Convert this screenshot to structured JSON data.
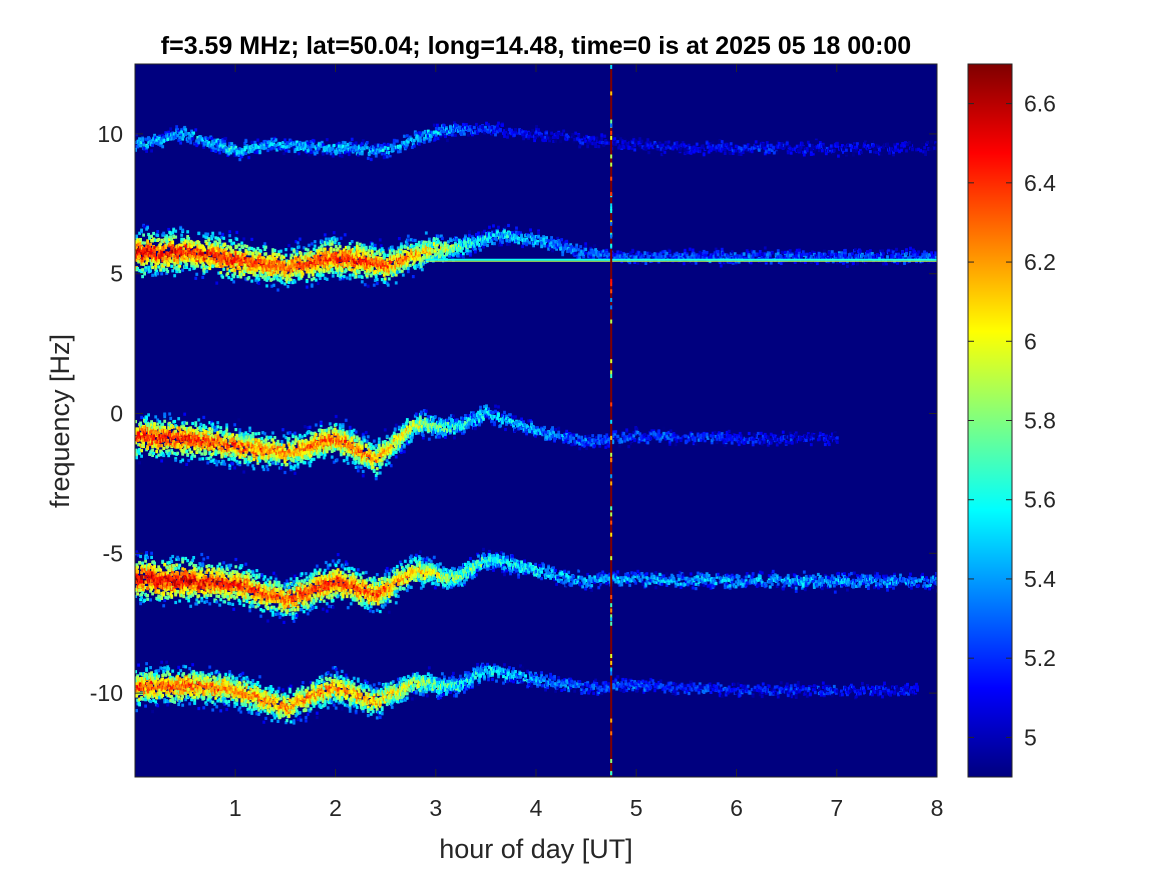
{
  "chart_data": {
    "type": "heatmap",
    "title": "f=3.59 MHz;  lat=50.04; long=14.48, time=0 is at 2025 05 18 00:00",
    "xlabel": "hour of day [UT]",
    "ylabel": "frequency [Hz]",
    "xlim": [
      0,
      8
    ],
    "ylim": [
      -13,
      12.5
    ],
    "x_ticks": [
      1,
      2,
      3,
      4,
      5,
      6,
      7,
      8
    ],
    "y_ticks": [
      -10,
      -5,
      0,
      5,
      10
    ],
    "colormap": "jet",
    "colorbar": {
      "range": [
        4.9,
        6.7
      ],
      "ticks": [
        5,
        5.2,
        5.4,
        5.6,
        5.8,
        6,
        6.2,
        6.4,
        6.6
      ]
    },
    "background_level": 4.9,
    "traces": [
      {
        "x": [
          0.0,
          0.5,
          1.0,
          1.5,
          2.0,
          2.5,
          3.0,
          3.5,
          4.0,
          4.5,
          5.0,
          5.5,
          6.0,
          7.0,
          8.0
        ],
        "y": [
          9.6,
          10.0,
          9.4,
          9.6,
          9.5,
          9.4,
          10.1,
          10.2,
          10.0,
          9.8,
          9.6,
          9.5,
          9.5,
          9.5,
          9.5
        ],
        "intensity": [
          5.5,
          5.5,
          5.6,
          5.5,
          5.5,
          5.5,
          5.5,
          5.2,
          5.1,
          5.1,
          5.1,
          5.1,
          5.2,
          5.1,
          5.0
        ]
      },
      {
        "x": [
          0.0,
          0.5,
          1.0,
          1.5,
          2.0,
          2.5,
          2.9,
          3.3,
          3.6,
          4.0,
          4.4,
          4.8,
          5.5,
          6.5,
          8.0
        ],
        "y": [
          5.7,
          5.8,
          5.5,
          5.2,
          5.6,
          5.3,
          5.8,
          6.0,
          6.4,
          6.2,
          5.8,
          5.6,
          5.6,
          5.6,
          5.6
        ],
        "intensity": [
          6.6,
          6.5,
          6.5,
          6.4,
          6.5,
          6.4,
          6.2,
          5.7,
          5.6,
          5.5,
          5.4,
          5.3,
          5.3,
          5.3,
          5.3
        ]
      },
      {
        "x": [
          0.0,
          0.5,
          1.0,
          1.5,
          2.0,
          2.4,
          2.8,
          3.2,
          3.5,
          4.0,
          4.5,
          5.0,
          6.0,
          7.0
        ],
        "y": [
          -0.8,
          -0.9,
          -1.2,
          -1.4,
          -0.9,
          -1.6,
          -0.4,
          -0.5,
          0.0,
          -0.6,
          -1.0,
          -0.8,
          -0.9,
          -0.9
        ],
        "intensity": [
          6.5,
          6.5,
          6.4,
          6.3,
          6.4,
          6.3,
          6.0,
          5.7,
          5.6,
          5.5,
          5.3,
          5.3,
          5.2,
          5.1
        ]
      },
      {
        "x": [
          0.0,
          0.5,
          1.0,
          1.5,
          2.0,
          2.4,
          2.8,
          3.2,
          3.5,
          4.0,
          4.5,
          5.0,
          6.0,
          7.0,
          8.0
        ],
        "y": [
          -5.9,
          -6.0,
          -6.1,
          -6.7,
          -6.0,
          -6.5,
          -5.6,
          -5.9,
          -5.2,
          -5.6,
          -6.0,
          -5.9,
          -6.0,
          -6.0,
          -6.0
        ],
        "intensity": [
          6.6,
          6.6,
          6.5,
          6.4,
          6.5,
          6.4,
          6.2,
          5.9,
          5.7,
          5.6,
          5.5,
          5.5,
          5.5,
          5.5,
          5.4
        ]
      },
      {
        "x": [
          0.0,
          0.5,
          1.0,
          1.5,
          2.0,
          2.4,
          2.8,
          3.2,
          3.5,
          4.0,
          4.5,
          5.0,
          6.0,
          7.0,
          7.8
        ],
        "y": [
          -9.8,
          -9.7,
          -9.9,
          -10.5,
          -9.8,
          -10.3,
          -9.6,
          -9.8,
          -9.2,
          -9.5,
          -9.8,
          -9.7,
          -9.9,
          -9.9,
          -9.9
        ],
        "intensity": [
          6.4,
          6.4,
          6.3,
          6.3,
          6.3,
          6.2,
          6.0,
          5.7,
          5.6,
          5.5,
          5.3,
          5.3,
          5.2,
          5.2,
          5.1
        ]
      }
    ],
    "horizontal_line": {
      "y": 5.5,
      "x_from": 2.9,
      "x_to": 8,
      "intensity": 5.6
    },
    "vertical_line": {
      "x": 4.75,
      "intensity": 6.7
    }
  }
}
